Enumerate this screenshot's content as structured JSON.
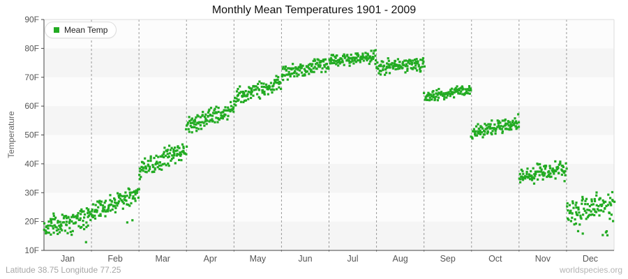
{
  "title": "Monthly Mean Temperatures 1901 - 2009",
  "legend": {
    "label": "Mean Temp"
  },
  "y_axis": {
    "title": "Temperature",
    "tick_labels": [
      "90F",
      "80F",
      "70F",
      "60F",
      "50F",
      "40F",
      "30F",
      "20F",
      "10F"
    ]
  },
  "x_axis": {
    "month_labels": [
      "Jan",
      "Feb",
      "Mar",
      "Apr",
      "May",
      "Jun",
      "Jul",
      "Aug",
      "Sep",
      "Oct",
      "Nov",
      "Dec"
    ]
  },
  "footer": {
    "left": "Latitude 38.75 Longitude 77.25",
    "right": "worldspecies.org"
  },
  "colors": {
    "point_green": "#22ab22",
    "band_gray": "#f5f5f5",
    "band_light": "#fcfcfc",
    "axis_dark": "#444444",
    "frame_light": "#dddddd",
    "grid_dashed": "#999999",
    "tick_text": "#555555",
    "title_text": "#111111",
    "footer_text": "#a6a6a6"
  },
  "chart_data": {
    "type": "scatter",
    "title": "Monthly Mean Temperatures 1901 - 2009",
    "xlabel": "",
    "ylabel": "Temperature",
    "unit": "F",
    "ylim": [
      10,
      90
    ],
    "ytick_step": 10,
    "grid": "vertical dashed lines at month boundaries",
    "background": "alternating horizontal 10F bands (gray: 10-20, 30-40, 50-60, 70-80)",
    "legend_position": "top-left",
    "x_categories": [
      "Jan",
      "Feb",
      "Mar",
      "Apr",
      "May",
      "Jun",
      "Jul",
      "Aug",
      "Sep",
      "Oct",
      "Nov",
      "Dec"
    ],
    "years_range": [
      1901,
      2009
    ],
    "points_per_month": 109,
    "x_within_band": "year 1901 (left) to 2009 (right)",
    "series": [
      {
        "name": "Mean Temp",
        "color": "#22ab22",
        "marker": "square",
        "monthly_stats_F": [
          {
            "month": "Jan",
            "mean": 20.0,
            "min": 10.5,
            "max": 28.5,
            "trend_within_band": 4.0,
            "spread": 3.2,
            "low_tail_chance": 0.07,
            "low_tail_depth": 7
          },
          {
            "month": "Feb",
            "mean": 26.5,
            "min": 17.0,
            "max": 35.5,
            "trend_within_band": 7.0,
            "spread": 2.8,
            "low_tail_chance": 0.04,
            "low_tail_depth": 5
          },
          {
            "month": "Mar",
            "mean": 41.5,
            "min": 33.0,
            "max": 50.5,
            "trend_within_band": 8.0,
            "spread": 2.8,
            "low_tail_chance": 0,
            "low_tail_depth": 0
          },
          {
            "month": "Apr",
            "mean": 56.0,
            "min": 49.5,
            "max": 63.5,
            "trend_within_band": 6.0,
            "spread": 2.4,
            "low_tail_chance": 0,
            "low_tail_depth": 0
          },
          {
            "month": "May",
            "mean": 65.5,
            "min": 59.5,
            "max": 72.5,
            "trend_within_band": 5.0,
            "spread": 2.4,
            "low_tail_chance": 0,
            "low_tail_depth": 0
          },
          {
            "month": "Jun",
            "mean": 73.0,
            "min": 67.5,
            "max": 78.5,
            "trend_within_band": 3.5,
            "spread": 2.2,
            "low_tail_chance": 0,
            "low_tail_depth": 0
          },
          {
            "month": "Jul",
            "mean": 76.5,
            "min": 71.5,
            "max": 81.0,
            "trend_within_band": 1.5,
            "spread": 2.0,
            "low_tail_chance": 0,
            "low_tail_depth": 0
          },
          {
            "month": "Aug",
            "mean": 74.0,
            "min": 67.0,
            "max": 79.0,
            "trend_within_band": 1.0,
            "spread": 2.2,
            "low_tail_chance": 0,
            "low_tail_depth": 0
          },
          {
            "month": "Sep",
            "mean": 64.5,
            "min": 60.5,
            "max": 70.0,
            "trend_within_band": 2.5,
            "spread": 1.7,
            "low_tail_chance": 0,
            "low_tail_depth": 0
          },
          {
            "month": "Oct",
            "mean": 52.5,
            "min": 47.0,
            "max": 58.5,
            "trend_within_band": 4.0,
            "spread": 2.2,
            "low_tail_chance": 0,
            "low_tail_depth": 0
          },
          {
            "month": "Nov",
            "mean": 37.0,
            "min": 29.5,
            "max": 44.0,
            "trend_within_band": 4.5,
            "spread": 2.6,
            "low_tail_chance": 0.03,
            "low_tail_depth": 4
          },
          {
            "month": "Dec",
            "mean": 25.0,
            "min": 11.0,
            "max": 32.0,
            "trend_within_band": 4.0,
            "spread": 3.4,
            "low_tail_chance": 0.12,
            "low_tail_depth": 9
          }
        ]
      }
    ]
  }
}
